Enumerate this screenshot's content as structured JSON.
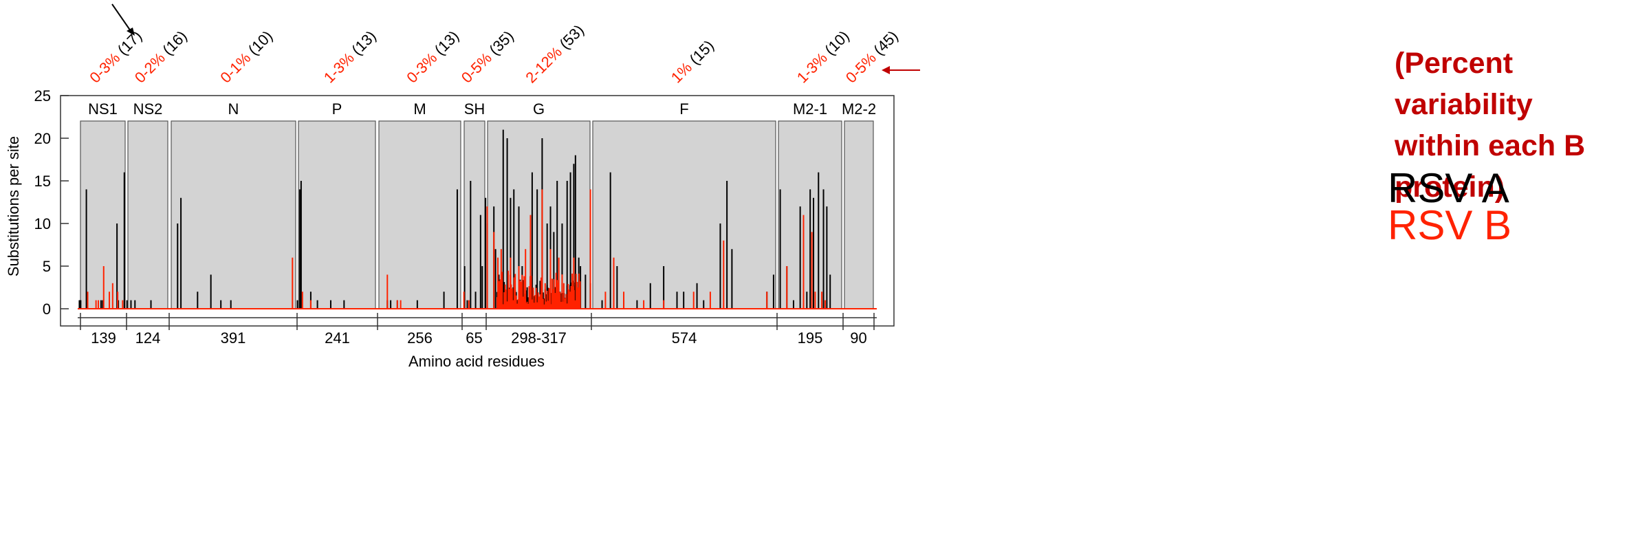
{
  "chart_data": {
    "type": "bar",
    "ylabel": "Substitutions per site",
    "xlabel": "Amino acid residues",
    "ylim": [
      0,
      25
    ],
    "yticks": [
      0,
      5,
      10,
      15,
      20,
      25
    ],
    "grid": false,
    "colors": {
      "rsv_a": "#000000",
      "rsv_b": "#ff2200",
      "protein_box": "#d3d3d3",
      "note": "#c00000"
    },
    "proteins": [
      {
        "name": "NS1",
        "length": "139",
        "b_var": "0-3%",
        "a_var": "(17)"
      },
      {
        "name": "NS2",
        "length": "124",
        "b_var": "0-2%",
        "a_var": "(16)"
      },
      {
        "name": "N",
        "length": "391",
        "b_var": "0-1%",
        "a_var": "(10)"
      },
      {
        "name": "P",
        "length": "241",
        "b_var": "1-3%",
        "a_var": "(13)"
      },
      {
        "name": "M",
        "length": "256",
        "b_var": "0-3%",
        "a_var": "(13)"
      },
      {
        "name": "SH",
        "length": "65",
        "b_var": "0-5%",
        "a_var": "(35)"
      },
      {
        "name": "G",
        "length": "298-317",
        "b_var": "2-12%",
        "a_var": "(53)"
      },
      {
        "name": "F",
        "length": "574",
        "b_var": "1%",
        "a_var": "(15)"
      },
      {
        "name": "M2-1",
        "length": "195",
        "b_var": "1-3%",
        "a_var": "(10)"
      },
      {
        "name": "M2-2",
        "length": "90",
        "b_var": "0-5%",
        "a_var": "(45)"
      }
    ],
    "series": [
      {
        "name": "RSV A",
        "color": "#000000",
        "peaks": [
          [
            5,
            1
          ],
          [
            7,
            1
          ],
          [
            9,
            1
          ],
          [
            26,
            14
          ],
          [
            70,
            1
          ],
          [
            75,
            1
          ],
          [
            118,
            10
          ],
          [
            122,
            1
          ],
          [
            140,
            16
          ],
          [
            148,
            1
          ],
          [
            160,
            1
          ],
          [
            172,
            1
          ],
          [
            220,
            1
          ],
          [
            300,
            10
          ],
          [
            310,
            13
          ],
          [
            360,
            2
          ],
          [
            400,
            4
          ],
          [
            430,
            1
          ],
          [
            460,
            1
          ],
          [
            660,
            1
          ],
          [
            667,
            14
          ],
          [
            671,
            15
          ],
          [
            700,
            2
          ],
          [
            720,
            1
          ],
          [
            760,
            1
          ],
          [
            800,
            1
          ],
          [
            930,
            1
          ],
          [
            940,
            1
          ],
          [
            960,
            1
          ],
          [
            1020,
            1
          ],
          [
            1100,
            2
          ],
          [
            1140,
            14
          ],
          [
            1162,
            5
          ],
          [
            1170,
            1
          ],
          [
            1180,
            15
          ],
          [
            1195,
            2
          ],
          [
            1210,
            11
          ],
          [
            1215,
            5
          ],
          [
            1225,
            13
          ],
          [
            1230,
            10
          ],
          [
            1250,
            12
          ],
          [
            1255,
            7
          ],
          [
            1265,
            4
          ],
          [
            1278,
            21
          ],
          [
            1290,
            20
          ],
          [
            1300,
            13
          ],
          [
            1310,
            14
          ],
          [
            1325,
            12
          ],
          [
            1335,
            5
          ],
          [
            1345,
            1
          ],
          [
            1365,
            16
          ],
          [
            1380,
            14
          ],
          [
            1395,
            20
          ],
          [
            1410,
            10
          ],
          [
            1420,
            12
          ],
          [
            1430,
            9
          ],
          [
            1440,
            15
          ],
          [
            1455,
            10
          ],
          [
            1470,
            15
          ],
          [
            1480,
            16
          ],
          [
            1490,
            17
          ],
          [
            1495,
            18
          ],
          [
            1505,
            6
          ],
          [
            1510,
            5
          ],
          [
            1525,
            4
          ],
          [
            1540,
            3
          ],
          [
            1575,
            1
          ],
          [
            1600,
            16
          ],
          [
            1620,
            5
          ],
          [
            1640,
            1
          ],
          [
            1680,
            1
          ],
          [
            1720,
            3
          ],
          [
            1760,
            5
          ],
          [
            1800,
            2
          ],
          [
            1820,
            2
          ],
          [
            1860,
            3
          ],
          [
            1880,
            1
          ],
          [
            1930,
            10
          ],
          [
            1950,
            15
          ],
          [
            1965,
            7
          ],
          [
            2070,
            2
          ],
          [
            2090,
            4
          ],
          [
            2110,
            14
          ],
          [
            2130,
            5
          ],
          [
            2150,
            1
          ],
          [
            2170,
            12
          ],
          [
            2180,
            1
          ],
          [
            2190,
            2
          ],
          [
            2200,
            14
          ],
          [
            2210,
            13
          ],
          [
            2225,
            16
          ],
          [
            2240,
            14
          ],
          [
            2250,
            12
          ],
          [
            2260,
            4
          ]
        ]
      },
      {
        "name": "RSV B",
        "color": "#ff2200",
        "peaks": [
          [
            30,
            2
          ],
          [
            55,
            1
          ],
          [
            62,
            1
          ],
          [
            78,
            5
          ],
          [
            95,
            2
          ],
          [
            105,
            3
          ],
          [
            120,
            2
          ],
          [
            135,
            1
          ],
          [
            645,
            6
          ],
          [
            675,
            2
          ],
          [
            700,
            1
          ],
          [
            930,
            4
          ],
          [
            960,
            1
          ],
          [
            970,
            1
          ],
          [
            1160,
            2
          ],
          [
            1175,
            1
          ],
          [
            1230,
            12
          ],
          [
            1250,
            9
          ],
          [
            1262,
            6
          ],
          [
            1272,
            7
          ],
          [
            1300,
            6
          ],
          [
            1325,
            5
          ],
          [
            1345,
            7
          ],
          [
            1360,
            11
          ],
          [
            1395,
            14
          ],
          [
            1420,
            7
          ],
          [
            1445,
            6
          ],
          [
            1460,
            3
          ],
          [
            1490,
            6
          ],
          [
            1540,
            14
          ],
          [
            1585,
            2
          ],
          [
            1610,
            6
          ],
          [
            1640,
            2
          ],
          [
            1700,
            1
          ],
          [
            1760,
            1
          ],
          [
            1850,
            2
          ],
          [
            1900,
            2
          ],
          [
            1940,
            8
          ],
          [
            2070,
            2
          ],
          [
            2130,
            5
          ],
          [
            2180,
            11
          ],
          [
            2205,
            9
          ],
          [
            2215,
            2
          ],
          [
            2235,
            2
          ],
          [
            2245,
            1
          ]
        ]
      }
    ],
    "dense_regions": [
      {
        "series": "RSV A",
        "from": 1260,
        "to": 1510,
        "max": 3
      },
      {
        "series": "RSV B",
        "from": 1260,
        "to": 1510,
        "max": 4
      }
    ]
  },
  "annotation": {
    "note_lines": [
      "(Percent",
      "variability",
      "within each B",
      "protein)"
    ],
    "rsv_a_label": "RSV A",
    "rsv_b_label": "RSV B"
  }
}
